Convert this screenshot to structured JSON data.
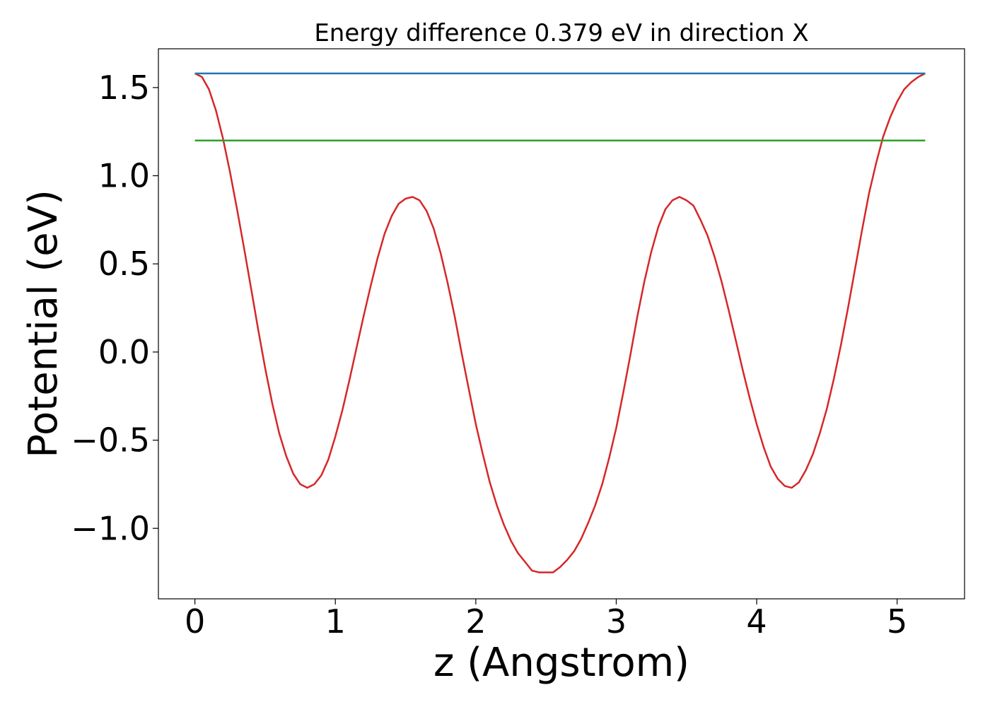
{
  "chart_data": {
    "type": "line",
    "title": "Energy difference 0.379 eV in direction X",
    "xlabel": "z (Angstrom)",
    "ylabel": "Potential (eV)",
    "xlim": [
      -0.26,
      5.48
    ],
    "ylim": [
      -1.4,
      1.72
    ],
    "xticks": [
      0,
      1,
      2,
      3,
      4,
      5
    ],
    "xtick_labels": [
      "0",
      "1",
      "2",
      "3",
      "4",
      "5"
    ],
    "yticks": [
      -1.0,
      -0.5,
      0.0,
      0.5,
      1.0,
      1.5
    ],
    "ytick_labels": [
      "−1.0",
      "−0.5",
      "0.0",
      "0.5",
      "1.0",
      "1.5"
    ],
    "grid": false,
    "series": [
      {
        "color": "#d62728",
        "x": [
          0,
          0.05,
          0.1,
          0.15,
          0.2,
          0.25,
          0.3,
          0.35,
          0.4,
          0.45,
          0.5,
          0.55,
          0.6,
          0.65,
          0.7,
          0.75,
          0.8,
          0.85,
          0.9,
          0.95,
          1.0,
          1.05,
          1.1,
          1.15,
          1.2,
          1.25,
          1.3,
          1.35,
          1.4,
          1.45,
          1.5,
          1.55,
          1.6,
          1.65,
          1.7,
          1.75,
          1.8,
          1.85,
          1.9,
          1.95,
          2.0,
          2.05,
          2.1,
          2.15,
          2.2,
          2.25,
          2.3,
          2.35,
          2.4,
          2.45,
          2.5,
          2.55,
          2.6,
          2.65,
          2.7,
          2.75,
          2.8,
          2.85,
          2.9,
          2.95,
          3.0,
          3.05,
          3.1,
          3.15,
          3.2,
          3.25,
          3.3,
          3.35,
          3.4,
          3.45,
          3.5,
          3.55,
          3.6,
          3.65,
          3.7,
          3.75,
          3.8,
          3.85,
          3.9,
          3.95,
          4.0,
          4.05,
          4.1,
          4.15,
          4.2,
          4.25,
          4.3,
          4.35,
          4.4,
          4.45,
          4.5,
          4.55,
          4.6,
          4.65,
          4.7,
          4.75,
          4.8,
          4.85,
          4.9,
          4.95,
          5.0,
          5.05,
          5.1,
          5.15,
          5.2
        ],
        "y": [
          1.58,
          1.56,
          1.49,
          1.37,
          1.21,
          1.02,
          0.81,
          0.59,
          0.36,
          0.13,
          -0.09,
          -0.29,
          -0.46,
          -0.59,
          -0.69,
          -0.75,
          -0.77,
          -0.75,
          -0.7,
          -0.61,
          -0.48,
          -0.33,
          -0.16,
          0.02,
          0.2,
          0.37,
          0.53,
          0.67,
          0.77,
          0.84,
          0.87,
          0.88,
          0.86,
          0.8,
          0.7,
          0.56,
          0.39,
          0.2,
          -0.01,
          -0.21,
          -0.41,
          -0.58,
          -0.74,
          -0.87,
          -0.98,
          -1.07,
          -1.14,
          -1.19,
          -1.24,
          -1.25,
          -1.25,
          -1.25,
          -1.22,
          -1.18,
          -1.13,
          -1.06,
          -0.97,
          -0.87,
          -0.75,
          -0.6,
          -0.43,
          -0.23,
          -0.02,
          0.2,
          0.4,
          0.57,
          0.71,
          0.81,
          0.86,
          0.88,
          0.86,
          0.83,
          0.75,
          0.66,
          0.54,
          0.4,
          0.24,
          0.07,
          -0.1,
          -0.26,
          -0.41,
          -0.54,
          -0.65,
          -0.72,
          -0.76,
          -0.77,
          -0.74,
          -0.67,
          -0.58,
          -0.46,
          -0.32,
          -0.15,
          0.04,
          0.25,
          0.47,
          0.69,
          0.9,
          1.07,
          1.22,
          1.33,
          1.42,
          1.49,
          1.53,
          1.56,
          1.58
        ]
      },
      {
        "color": "#1f77b4",
        "x": [
          0,
          5.2
        ],
        "y": [
          1.58,
          1.58
        ]
      },
      {
        "color": "#2ca02c",
        "x": [
          0,
          5.2
        ],
        "y": [
          1.2,
          1.2
        ]
      }
    ]
  }
}
